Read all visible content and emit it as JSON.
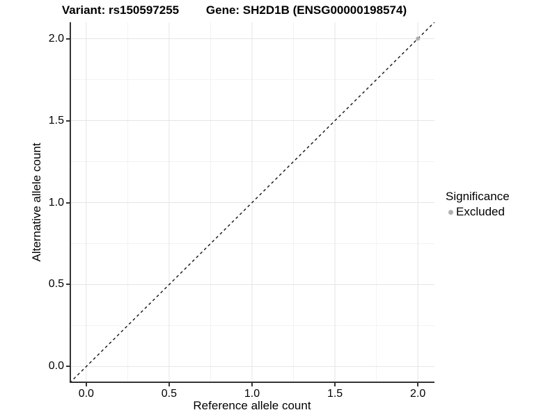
{
  "titles": {
    "variant": "Variant: rs150597255",
    "gene": "Gene: SH2D1B (ENSG00000198574)"
  },
  "legend": {
    "title": "Significance",
    "items": [
      {
        "label": "Excluded",
        "color": "#b0b0b0",
        "marker": "circle"
      }
    ]
  },
  "chart_data": {
    "type": "scatter",
    "title_left": "Variant: rs150597255",
    "title_right": "Gene: SH2D1B (ENSG00000198574)",
    "xlabel": "Reference allele count",
    "ylabel": "Alternative allele count",
    "xlim": [
      -0.1,
      2.1
    ],
    "ylim": [
      -0.1,
      2.1
    ],
    "x_ticks": {
      "values": [
        0,
        0.5,
        1,
        1.5,
        2
      ],
      "labels": [
        "0.0",
        "0.5",
        "1.0",
        "1.5",
        "2.0"
      ]
    },
    "y_ticks": {
      "values": [
        0,
        0.5,
        1,
        1.5,
        2
      ],
      "labels": [
        "0.0",
        "0.5",
        "1.0",
        "1.5",
        "2.0"
      ]
    },
    "minor_grid_x": [
      0.25,
      0.75,
      1.25,
      1.75
    ],
    "minor_grid_y": [
      0.25,
      0.75,
      1.25,
      1.75
    ],
    "grid": "on",
    "legend_position": "right",
    "series": [
      {
        "name": "Excluded",
        "color": "#b0b0b0",
        "marker": "circle",
        "points": [
          {
            "x": 2.0,
            "y": 2.0
          }
        ]
      }
    ],
    "reference_line": {
      "kind": "identity y = x",
      "style": "dashed",
      "color": "#111111",
      "from": [
        -0.1,
        -0.1
      ],
      "to": [
        2.1,
        2.1
      ]
    }
  },
  "colors": {
    "background": "#ffffff",
    "panel_background": "#ffffff",
    "grid_major": "#e4e4e4",
    "grid_minor": "#f2f2f2",
    "axis_line": "#333333",
    "tick_mark": "#333333",
    "text": "#000000",
    "point": "#b0b0b0"
  }
}
